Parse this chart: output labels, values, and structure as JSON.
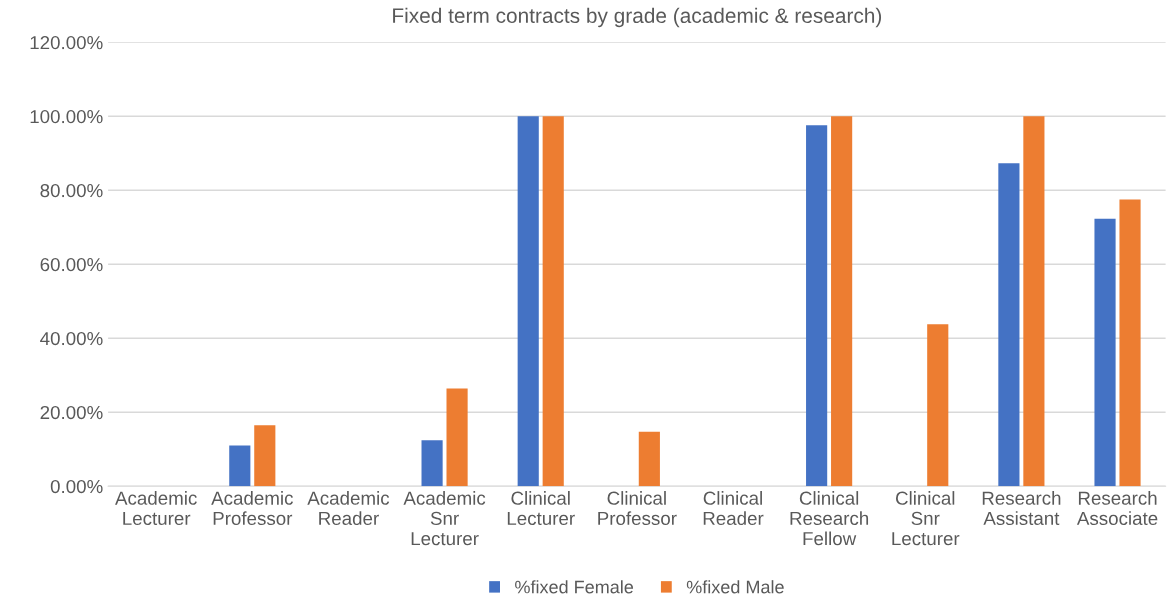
{
  "chart_data": {
    "type": "bar",
    "title": "Fixed term contracts by grade (academic & research)",
    "categories": [
      "Academic Lecturer",
      "Academic Professor",
      "Academic Reader",
      "Academic Snr Lecturer",
      "Clinical Lecturer",
      "Clinical Professor",
      "Clinical Reader",
      "Clinical Research Fellow",
      "Clinical Snr Lecturer",
      "Research Assistant",
      "Research Associate"
    ],
    "series": [
      {
        "name": "%fixed Female",
        "color": "#4472c4",
        "values": [
          0,
          11.0,
          0,
          12.4,
          100,
          0,
          0,
          97.6,
          0,
          87.3,
          72.3
        ]
      },
      {
        "name": "%fixed Male",
        "color": "#ed7d31",
        "values": [
          0,
          16.5,
          0,
          26.4,
          100,
          14.7,
          0,
          100,
          43.8,
          100,
          77.5
        ]
      }
    ],
    "ylim": [
      0,
      120
    ],
    "yticks": [
      {
        "value": 0,
        "label": "0.00%"
      },
      {
        "value": 20,
        "label": "20.00%"
      },
      {
        "value": 40,
        "label": "40.00%"
      },
      {
        "value": 60,
        "label": "60.00%"
      },
      {
        "value": 80,
        "label": "80.00%"
      },
      {
        "value": 100,
        "label": "100.00%"
      },
      {
        "value": 120,
        "label": "120.00%"
      }
    ],
    "grid": "y",
    "legend": "bottom"
  }
}
